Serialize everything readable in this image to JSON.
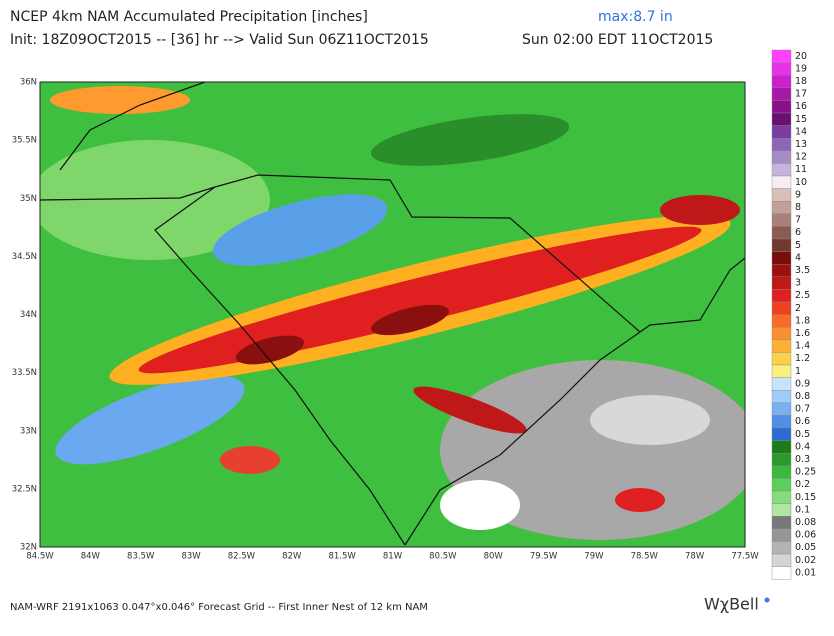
{
  "header": {
    "title": "NCEP 4km NAM Accumulated Precipitation [inches]",
    "max": "max:8.7 in",
    "init": "Init: 18Z09OCT2015 -- [36] hr --> Valid Sun 06Z11OCT2015",
    "local_time": "Sun 02:00 EDT 11OCT2015"
  },
  "map": {
    "lat_labels": [
      "36N",
      "35.5N",
      "35N",
      "34.5N",
      "34N",
      "33.5N",
      "33N",
      "32.5N",
      "32N"
    ],
    "lon_labels": [
      "84.5W",
      "84W",
      "83.5W",
      "83W",
      "82.5W",
      "82W",
      "81.5W",
      "81W",
      "80.5W",
      "80W",
      "79.5W",
      "79W",
      "78.5W",
      "78W",
      "77.5W"
    ]
  },
  "colorbar": [
    {
      "label": "20",
      "color": "#ff40ff"
    },
    {
      "label": "19",
      "color": "#e830e8"
    },
    {
      "label": "18",
      "color": "#cc20cc"
    },
    {
      "label": "17",
      "color": "#a818a8"
    },
    {
      "label": "16",
      "color": "#881088"
    },
    {
      "label": "15",
      "color": "#6a1070"
    },
    {
      "label": "14",
      "color": "#7a3ca0"
    },
    {
      "label": "13",
      "color": "#8c64b8"
    },
    {
      "label": "12",
      "color": "#a48cc8"
    },
    {
      "label": "11",
      "color": "#c4b4dc"
    },
    {
      "label": "10",
      "color": "#f4eef4"
    },
    {
      "label": "9",
      "color": "#d8c0b8"
    },
    {
      "label": "8",
      "color": "#c0a098"
    },
    {
      "label": "7",
      "color": "#a88078"
    },
    {
      "label": "6",
      "color": "#8c5c54"
    },
    {
      "label": "5",
      "color": "#703830"
    },
    {
      "label": "4",
      "color": "#7a0c0c"
    },
    {
      "label": "3.5",
      "color": "#9c1010"
    },
    {
      "label": "3",
      "color": "#c01818"
    },
    {
      "label": "2.5",
      "color": "#e02020"
    },
    {
      "label": "2",
      "color": "#f04020"
    },
    {
      "label": "1.8",
      "color": "#f86c28"
    },
    {
      "label": "1.6",
      "color": "#fc9030"
    },
    {
      "label": "1.4",
      "color": "#fcb038"
    },
    {
      "label": "1.2",
      "color": "#fcd048"
    },
    {
      "label": "1",
      "color": "#fcf07c"
    },
    {
      "label": "0.9",
      "color": "#c8e4fc"
    },
    {
      "label": "0.8",
      "color": "#a0ccf8"
    },
    {
      "label": "0.7",
      "color": "#78b0f0"
    },
    {
      "label": "0.6",
      "color": "#5090e4"
    },
    {
      "label": "0.5",
      "color": "#2c6cd4"
    },
    {
      "label": "0.4",
      "color": "#1c7c1c"
    },
    {
      "label": "0.3",
      "color": "#2a9a2a"
    },
    {
      "label": "0.25",
      "color": "#3cb83c"
    },
    {
      "label": "0.2",
      "color": "#5cce5c"
    },
    {
      "label": "0.15",
      "color": "#84dc7c"
    },
    {
      "label": "0.1",
      "color": "#ace8a0"
    },
    {
      "label": "0.08",
      "color": "#787878"
    },
    {
      "label": "0.06",
      "color": "#969696"
    },
    {
      "label": "0.05",
      "color": "#b4b4b4"
    },
    {
      "label": "0.02",
      "color": "#d4d4d4"
    },
    {
      "label": "0.01",
      "color": "#ffffff"
    }
  ],
  "footer": {
    "note": "NAM-WRF 2191x1063 0.047°x0.046° Forecast Grid -- First Inner Nest of 12 km NAM",
    "logo": "WχBell"
  }
}
